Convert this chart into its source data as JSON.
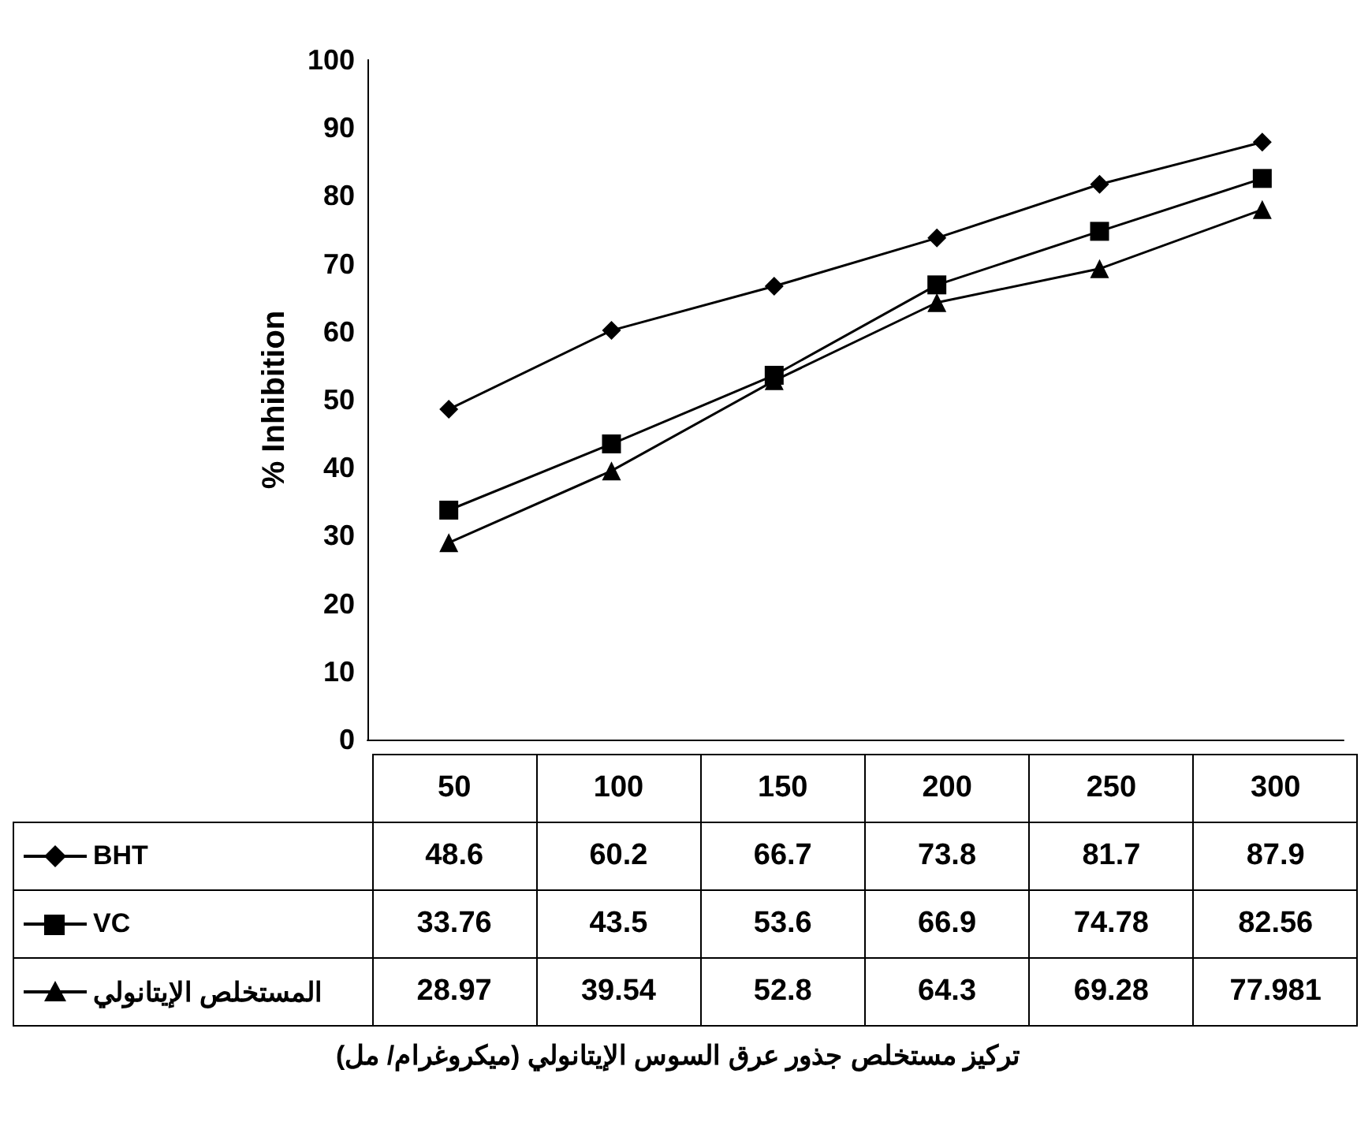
{
  "chart_data": {
    "type": "line",
    "annotations": [
      "تركيز مستخلص جذور عرق السوس الإيتانولي (ميكروغرام/ مل)"
    ],
    "ylabel": "% Inhibition",
    "categories": [
      "50",
      "100",
      "150",
      "200",
      "250",
      "300"
    ],
    "series": [
      {
        "name": "BHT",
        "color": "#000000",
        "marker": "diamond",
        "values": [
          48.6,
          60.2,
          66.7,
          73.8,
          81.7,
          87.9
        ]
      },
      {
        "name": "VC",
        "color": "#000000",
        "marker": "square",
        "values": [
          33.76,
          43.5,
          53.6,
          66.9,
          74.78,
          82.56
        ]
      },
      {
        "name": "المستخلص الإيتانولي",
        "color": "#000000",
        "marker": "triangle",
        "values": [
          28.97,
          39.54,
          52.8,
          64.3,
          69.28,
          77.981
        ]
      }
    ],
    "ylim": [
      0,
      100
    ],
    "yticks": [
      0,
      10,
      20,
      30,
      40,
      50,
      60,
      70,
      80,
      90,
      100
    ],
    "grid": false,
    "legend": "bottom",
    "data_labels": true,
    "line_style": "solid"
  }
}
